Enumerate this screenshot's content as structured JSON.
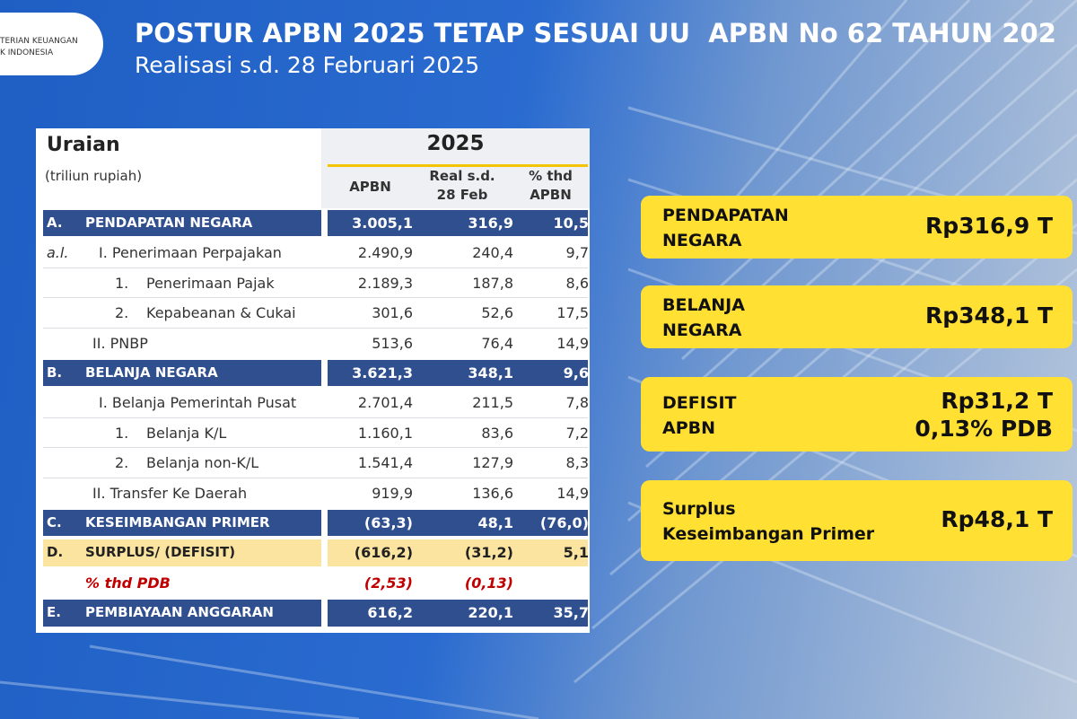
{
  "header": {
    "logo": [
      "TERIAN KEUANGAN",
      "K INDONESIA"
    ],
    "title": "POSTUR APBN 2025 TETAP SESUAI UU  APBN No 62 TAHUN 202",
    "subtitle": "Realisasi s.d. 28 Februari 2025"
  },
  "table": {
    "title": "Uraian",
    "unit": "(triliun rupiah)",
    "year": "2025",
    "columns": [
      "APBN",
      "Real s.d.\n28 Feb",
      "% thd\nAPBN"
    ],
    "rows": [
      {
        "prefix": "A.",
        "label": "PENDAPATAN NEGARA",
        "values": [
          "3.005,1",
          "316,9",
          "10,5"
        ],
        "fill": "#2f4f8f",
        "color": "#ffffff"
      },
      {
        "prefix": "a.l.",
        "label": "I. Penerimaan Perpajakan",
        "values": [
          "2.490,9",
          "240,4",
          "9,7"
        ]
      },
      {
        "prefix": "1.",
        "label": "Penerimaan Pajak",
        "values": [
          "2.189,3",
          "187,8",
          "8,6"
        ]
      },
      {
        "prefix": "2.",
        "label": "Kepabeanan & Cukai",
        "values": [
          "301,6",
          "52,6",
          "17,5"
        ]
      },
      {
        "label": "II. PNBP",
        "values": [
          "513,6",
          "76,4",
          "14,9"
        ]
      },
      {
        "prefix": "B.",
        "label": "BELANJA NEGARA",
        "values": [
          "3.621,3",
          "348,1",
          "9,6"
        ],
        "fill": "#2f4f8f",
        "color": "#ffffff"
      },
      {
        "label": "I. Belanja Pemerintah Pusat",
        "values": [
          "2.701,4",
          "211,5",
          "7,8"
        ]
      },
      {
        "prefix": "1.",
        "label": "Belanja K/L",
        "values": [
          "1.160,1",
          "83,6",
          "7,2"
        ]
      },
      {
        "prefix": "2.",
        "label": "Belanja non-K/L",
        "values": [
          "1.541,4",
          "127,9",
          "8,3"
        ]
      },
      {
        "label": "II. Transfer Ke Daerah",
        "values": [
          "919,9",
          "136,6",
          "14,9"
        ]
      },
      {
        "prefix": "C.",
        "label": "KESEIMBANGAN PRIMER",
        "values": [
          "(63,3)",
          "48,1",
          "(76,0)"
        ],
        "fill": "#2f4f8f",
        "color": "#ffffff"
      },
      {
        "prefix": "D.",
        "label": "SURPLUS/ (DEFISIT)",
        "values": [
          "(616,2)",
          "(31,2)",
          "5,1"
        ],
        "fill": "#fbe3a0",
        "color": "#222222"
      },
      {
        "label": "% thd PDB",
        "values": [
          "(2,53)",
          "(0,13)"
        ],
        "color": "#c00000"
      },
      {
        "prefix": "E.",
        "label": "PEMBIAYAAN ANGGARAN",
        "values": [
          "616,2",
          "220,1",
          "35,7"
        ],
        "fill": "#2f4f8f",
        "color": "#ffffff"
      }
    ]
  },
  "highlights": [
    {
      "label": "PENDAPATAN\nNEGARA",
      "value": [
        "Rp316,9 T"
      ]
    },
    {
      "label": "BELANJA\nNEGARA",
      "value": [
        "Rp348,1 T"
      ]
    },
    {
      "label": "DEFISIT\nAPBN",
      "value": [
        "Rp31,2 T",
        "0,13% PDB"
      ]
    },
    {
      "label": "Surplus\nKeseimbangan Primer",
      "value": [
        "Rp48,1 T"
      ]
    }
  ]
}
